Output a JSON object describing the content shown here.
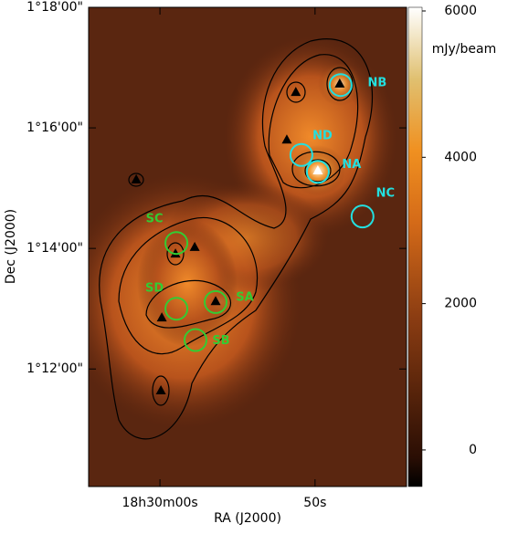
{
  "chart_data": {
    "type": "image",
    "xlabel": "RA (J2000)",
    "ylabel": "Dec (J2000)",
    "xlim": [
      4.6,
      -15.9
    ],
    "ylim": [
      10.05,
      18
    ],
    "xticks": [
      {
        "value": 0,
        "label": "18h30m00s"
      },
      {
        "value": -10,
        "label": "50s"
      }
    ],
    "yticks": [
      {
        "value": 18,
        "label": "1°18'00\""
      },
      {
        "value": 16,
        "label": "1°16'00\""
      },
      {
        "value": 14,
        "label": "1°14'00\""
      },
      {
        "value": 12,
        "label": "1°12'00\""
      }
    ],
    "colorbar": {
      "label": "mJy/beam",
      "lim": [
        -500,
        6050
      ],
      "ticks": [
        0,
        2000,
        4000,
        6000
      ]
    },
    "sources": [
      {
        "name": "NB",
        "x": -11.65,
        "y": 16.71,
        "color": "#22e0e0"
      },
      {
        "name": "ND",
        "x": -9.12,
        "y": 15.55,
        "color": "#22e0e0"
      },
      {
        "name": "NA",
        "x": -10.18,
        "y": 15.27,
        "color": "#22e0e0"
      },
      {
        "name": "NC",
        "x": -13.06,
        "y": 14.53,
        "color": "#22e0e0"
      },
      {
        "name": "SC",
        "x": -1.06,
        "y": 14.09,
        "color": "#33cc33"
      },
      {
        "name": "SD",
        "x": -1.06,
        "y": 13.0,
        "color": "#33cc33"
      },
      {
        "name": "SA",
        "x": -3.59,
        "y": 13.11,
        "color": "#33cc33"
      },
      {
        "name": "SB",
        "x": -2.29,
        "y": 12.48,
        "color": "#33cc33"
      }
    ],
    "peaks": {
      "x": [
        -11.59,
        -8.76,
        -10.18,
        -8.18,
        1.53,
        -1.0,
        -2.24,
        -3.59,
        -0.12,
        -0.06
      ],
      "y": [
        16.73,
        16.59,
        15.29,
        15.8,
        15.14,
        13.91,
        14.02,
        13.12,
        12.85,
        11.64
      ],
      "colors": [
        "#000000",
        "#000000",
        "#ffffff",
        "#000000",
        "#000000",
        "#000000",
        "#000000",
        "#000000",
        "#000000",
        "#000000"
      ]
    }
  }
}
